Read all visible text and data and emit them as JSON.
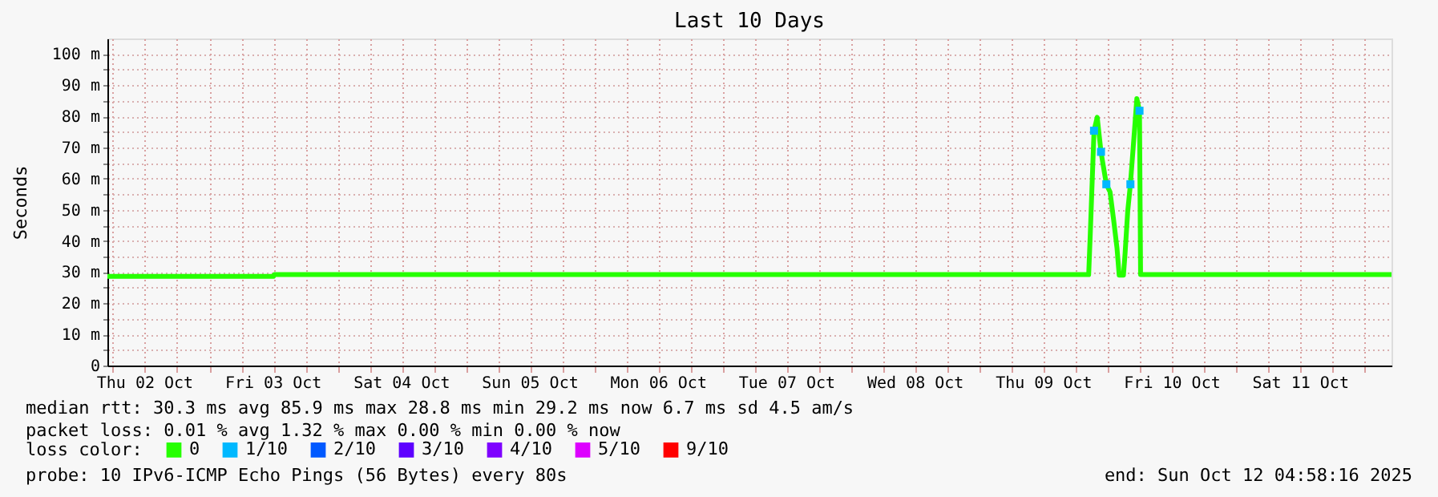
{
  "chart_data": {
    "type": "line",
    "title": "Last 10 Days",
    "ylabel": "Seconds",
    "legend_title": "loss color:",
    "legend": "bottom",
    "grid": true,
    "xlim": [
      "2025-10-02T04:58",
      "2025-10-12T04:58"
    ],
    "xticks": [
      {
        "value": "2025-10-02T06:00",
        "label": null
      },
      {
        "value": "2025-10-02T12:00",
        "label": "Thu 02 Oct"
      },
      {
        "value": "2025-10-02T18:00",
        "label": null
      },
      {
        "value": "2025-10-03T00:00",
        "label": null
      },
      {
        "value": "2025-10-03T06:00",
        "label": null
      },
      {
        "value": "2025-10-03T12:00",
        "label": "Fri 03 Oct"
      },
      {
        "value": "2025-10-03T18:00",
        "label": null
      },
      {
        "value": "2025-10-04T00:00",
        "label": null
      },
      {
        "value": "2025-10-04T06:00",
        "label": null
      },
      {
        "value": "2025-10-04T12:00",
        "label": "Sat 04 Oct"
      },
      {
        "value": "2025-10-04T18:00",
        "label": null
      },
      {
        "value": "2025-10-05T00:00",
        "label": null
      },
      {
        "value": "2025-10-05T06:00",
        "label": null
      },
      {
        "value": "2025-10-05T12:00",
        "label": "Sun 05 Oct"
      },
      {
        "value": "2025-10-05T18:00",
        "label": null
      },
      {
        "value": "2025-10-06T00:00",
        "label": null
      },
      {
        "value": "2025-10-06T06:00",
        "label": null
      },
      {
        "value": "2025-10-06T12:00",
        "label": "Mon 06 Oct"
      },
      {
        "value": "2025-10-06T18:00",
        "label": null
      },
      {
        "value": "2025-10-07T00:00",
        "label": null
      },
      {
        "value": "2025-10-07T06:00",
        "label": null
      },
      {
        "value": "2025-10-07T12:00",
        "label": "Tue 07 Oct"
      },
      {
        "value": "2025-10-07T18:00",
        "label": null
      },
      {
        "value": "2025-10-08T00:00",
        "label": null
      },
      {
        "value": "2025-10-08T06:00",
        "label": null
      },
      {
        "value": "2025-10-08T12:00",
        "label": "Wed 08 Oct"
      },
      {
        "value": "2025-10-08T18:00",
        "label": null
      },
      {
        "value": "2025-10-09T00:00",
        "label": null
      },
      {
        "value": "2025-10-09T06:00",
        "label": null
      },
      {
        "value": "2025-10-09T12:00",
        "label": "Thu 09 Oct"
      },
      {
        "value": "2025-10-09T18:00",
        "label": null
      },
      {
        "value": "2025-10-10T00:00",
        "label": null
      },
      {
        "value": "2025-10-10T06:00",
        "label": null
      },
      {
        "value": "2025-10-10T12:00",
        "label": "Fri 10 Oct"
      },
      {
        "value": "2025-10-10T18:00",
        "label": null
      },
      {
        "value": "2025-10-11T00:00",
        "label": null
      },
      {
        "value": "2025-10-11T06:00",
        "label": null
      },
      {
        "value": "2025-10-11T12:00",
        "label": "Sat 11 Oct"
      },
      {
        "value": "2025-10-11T18:00",
        "label": null
      },
      {
        "value": "2025-10-12T00:00",
        "label": null
      }
    ],
    "ylim": [
      0,
      105
    ],
    "yticks": [
      {
        "value": 0,
        "label": "0"
      },
      {
        "value": 5,
        "label": null
      },
      {
        "value": 10,
        "label": "10 m"
      },
      {
        "value": 15,
        "label": null
      },
      {
        "value": 20,
        "label": "20 m"
      },
      {
        "value": 25,
        "label": null
      },
      {
        "value": 30,
        "label": "30 m"
      },
      {
        "value": 35,
        "label": null
      },
      {
        "value": 40,
        "label": "40 m"
      },
      {
        "value": 45,
        "label": null
      },
      {
        "value": 50,
        "label": "50 m"
      },
      {
        "value": 55,
        "label": null
      },
      {
        "value": 60,
        "label": "60 m"
      },
      {
        "value": 65,
        "label": null
      },
      {
        "value": 70,
        "label": "70 m"
      },
      {
        "value": 75,
        "label": null
      },
      {
        "value": 80,
        "label": "80 m"
      },
      {
        "value": 85,
        "label": null
      },
      {
        "value": 90,
        "label": "90 m"
      },
      {
        "value": 95,
        "label": null
      },
      {
        "value": 100,
        "label": "100 m"
      }
    ],
    "series": [
      {
        "name": "0",
        "color": "#26ff00",
        "x": [
          "2025-10-02T04:58",
          "2025-10-03T12:00",
          "2025-10-03T12:10",
          "2025-10-09T20:22",
          "2025-10-09T20:40",
          "2025-10-09T21:22",
          "2025-10-09T21:58",
          "2025-10-09T22:40",
          "2025-10-09T23:40",
          "2025-10-10T00:22",
          "2025-10-10T01:04",
          "2025-10-10T01:40",
          "2025-10-10T02:04",
          "2025-10-10T02:52",
          "2025-10-10T03:10",
          "2025-10-10T03:40",
          "2025-10-10T04:10",
          "2025-10-10T04:52",
          "2025-10-10T05:22",
          "2025-10-10T05:52",
          "2025-10-10T06:04",
          "2025-10-12T04:58"
        ],
        "values": [
          28.6,
          28.6,
          29.2,
          29.2,
          42.3,
          75.4,
          79.7,
          68.6,
          58.2,
          55.7,
          46.2,
          37.6,
          29.0,
          29.0,
          35.9,
          49.6,
          58.2,
          74.1,
          85.7,
          81.8,
          29.2,
          29.2
        ]
      },
      {
        "name": "1/10",
        "color": "#00b8ff",
        "type": "scatter",
        "marker": "square",
        "x": [
          "2025-10-09T21:22",
          "2025-10-09T22:40",
          "2025-10-09T23:40",
          "2025-10-10T04:10",
          "2025-10-10T05:52"
        ],
        "values": [
          75.4,
          68.6,
          58.2,
          58.2,
          81.8
        ]
      },
      {
        "name": "2/10",
        "color": "#0059ff",
        "type": "scatter"
      },
      {
        "name": "3/10",
        "color": "#5e00ff",
        "type": "scatter"
      },
      {
        "name": "4/10",
        "color": "#7e00ff",
        "type": "scatter"
      },
      {
        "name": "5/10",
        "color": "#dd00ff",
        "type": "scatter"
      },
      {
        "name": "9/10",
        "color": "#ff0000",
        "type": "scatter"
      }
    ],
    "annotations": [
      "median rtt:  30.3 ms avg  85.9 ms max  28.8 ms min  29.2 ms now  6.7 ms sd  4.5   am/s",
      "packet loss: 0.01 % avg  1.32 % max  0.00 % min  0.00 % now",
      "probe:       10 IPv6-ICMP Echo Pings (56 Bytes) every 80s",
      "end: Sun Oct 12 04:58:16 2025"
    ]
  }
}
